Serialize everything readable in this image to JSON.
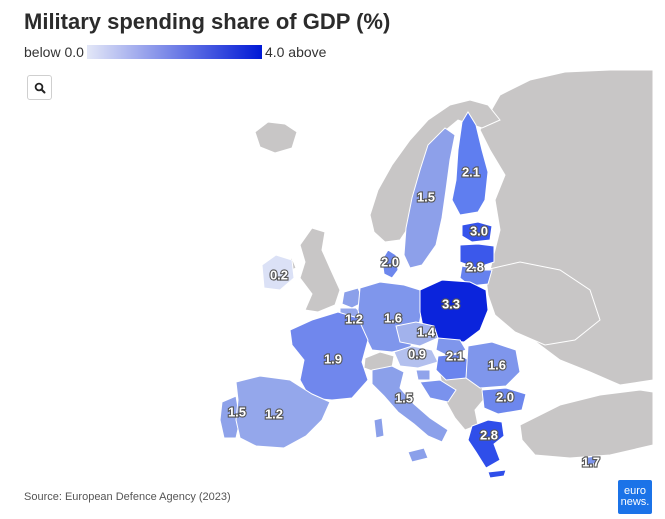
{
  "title": "Military spending share of GDP (%)",
  "legend": {
    "min_label": "below 0.0",
    "max_label": "4.0 above",
    "min_value": 0.0,
    "max_value": 4.0,
    "color_low": "#e3e7f7",
    "color_high": "#0019d6"
  },
  "search_icon": "search-icon",
  "map_data": {
    "unit": "% of GDP",
    "values": [
      {
        "id": "finland",
        "value": "2.1"
      },
      {
        "id": "sweden",
        "value": "1.5"
      },
      {
        "id": "estonia",
        "value": "3.0"
      },
      {
        "id": "latvia",
        "value": "2.8"
      },
      {
        "id": "denmark",
        "value": "2.0"
      },
      {
        "id": "ireland",
        "value": "0.2"
      },
      {
        "id": "poland",
        "value": "3.3"
      },
      {
        "id": "belgium",
        "value": "1.2"
      },
      {
        "id": "germany",
        "value": "1.6"
      },
      {
        "id": "czechia",
        "value": "1.4"
      },
      {
        "id": "austria",
        "value": "0.9"
      },
      {
        "id": "hungary",
        "value": "2.1"
      },
      {
        "id": "france",
        "value": "1.9"
      },
      {
        "id": "romania",
        "value": "1.6"
      },
      {
        "id": "bulgaria",
        "value": "2.0"
      },
      {
        "id": "italy",
        "value": "1.5"
      },
      {
        "id": "portugal",
        "value": "1.5"
      },
      {
        "id": "spain",
        "value": "1.2"
      },
      {
        "id": "greece",
        "value": "2.8"
      },
      {
        "id": "cyprus",
        "value": "1.7"
      }
    ]
  },
  "source": "Source: European Defence Agency (2023)",
  "logo": {
    "line1": "euro",
    "line2": "news."
  }
}
